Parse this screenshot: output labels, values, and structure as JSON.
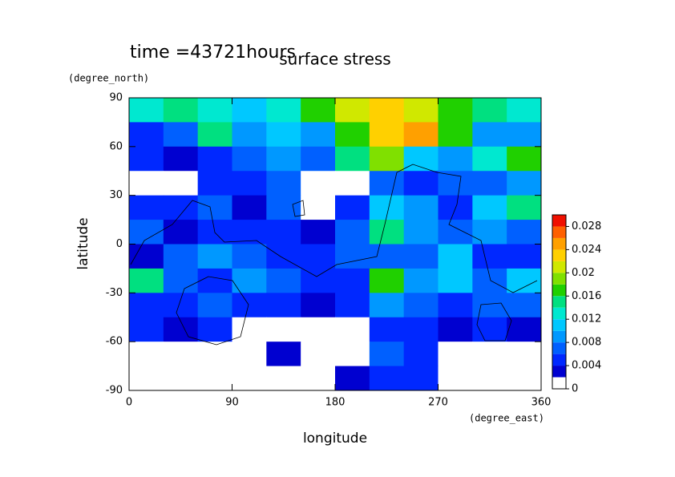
{
  "chart_data": {
    "type": "contour",
    "title": "surface stress",
    "time_label": "time =43721hours",
    "xlabel": "longitude",
    "ylabel": "latitude",
    "x_units": "(degree_east)",
    "y_units": "(degree_north)",
    "xlim": [
      0,
      360
    ],
    "xticks": [
      0,
      90,
      180,
      270,
      360
    ],
    "ylim": [
      -90,
      90
    ],
    "yticks": [
      90,
      60,
      30,
      0,
      -30,
      -60,
      -90
    ],
    "x": [
      15,
      45,
      75,
      105,
      135,
      165,
      195,
      225,
      255,
      285,
      315,
      345
    ],
    "y": [
      82.5,
      67.5,
      52.5,
      37.5,
      22.5,
      7.5,
      -7.5,
      -22.5,
      -37.5,
      -52.5,
      -67.5,
      -82.5
    ],
    "z": [
      [
        0.012,
        0.014,
        0.012,
        0.01,
        0.012,
        0.016,
        0.02,
        0.022,
        0.02,
        0.016,
        0.014,
        0.012
      ],
      [
        0.004,
        0.006,
        0.014,
        0.008,
        0.01,
        0.008,
        0.016,
        0.022,
        0.024,
        0.016,
        0.008,
        0.008
      ],
      [
        0.004,
        0.002,
        0.004,
        0.006,
        0.008,
        0.006,
        0.014,
        0.018,
        0.01,
        0.008,
        0.012,
        0.016
      ],
      [
        0,
        0,
        0.004,
        0.004,
        0.006,
        0,
        0,
        0.006,
        0.004,
        0.006,
        0.006,
        0.008
      ],
      [
        0.004,
        0.004,
        0.006,
        0.002,
        0.006,
        0,
        0.004,
        0.01,
        0.008,
        0.004,
        0.01,
        0.014
      ],
      [
        0.006,
        0.002,
        0.004,
        0.004,
        0.004,
        0.002,
        0.006,
        0.014,
        0.008,
        0.006,
        0.008,
        0.006
      ],
      [
        0.002,
        0.006,
        0.008,
        0.006,
        0.004,
        0.004,
        0.006,
        0.006,
        0.006,
        0.01,
        0.004,
        0.004
      ],
      [
        0.014,
        0.006,
        0.004,
        0.008,
        0.006,
        0.004,
        0.004,
        0.016,
        0.008,
        0.01,
        0.006,
        0.01
      ],
      [
        0.004,
        0.004,
        0.006,
        0.004,
        0.004,
        0.002,
        0.004,
        0.008,
        0.006,
        0.004,
        0.006,
        0.006
      ],
      [
        0.004,
        0.002,
        0.004,
        0,
        0,
        0,
        0,
        0.004,
        0.004,
        0.002,
        0.004,
        0.002
      ],
      [
        0,
        0,
        0,
        0,
        0.002,
        0,
        0,
        0.006,
        0.004,
        0,
        0,
        0
      ],
      [
        0,
        0,
        0,
        0,
        0,
        0,
        0.002,
        0.004,
        0.004,
        0,
        0,
        0
      ]
    ],
    "levels": [
      0,
      0.002,
      0.004,
      0.006,
      0.008,
      0.01,
      0.012,
      0.014,
      0.016,
      0.018,
      0.02,
      0.022,
      0.024,
      0.026,
      0.028,
      0.03
    ],
    "colors": [
      "#ffffff",
      "#0000d0",
      "#0028ff",
      "#0060ff",
      "#0098ff",
      "#00c8ff",
      "#00e8d0",
      "#00e080",
      "#20d000",
      "#80e000",
      "#d0e800",
      "#ffd000",
      "#ffa000",
      "#ff6000",
      "#f01000"
    ],
    "clim": [
      0,
      0.03
    ],
    "cticks": [
      0,
      0.004,
      0.008,
      0.012,
      0.016,
      0.02,
      0.024,
      0.028
    ]
  }
}
